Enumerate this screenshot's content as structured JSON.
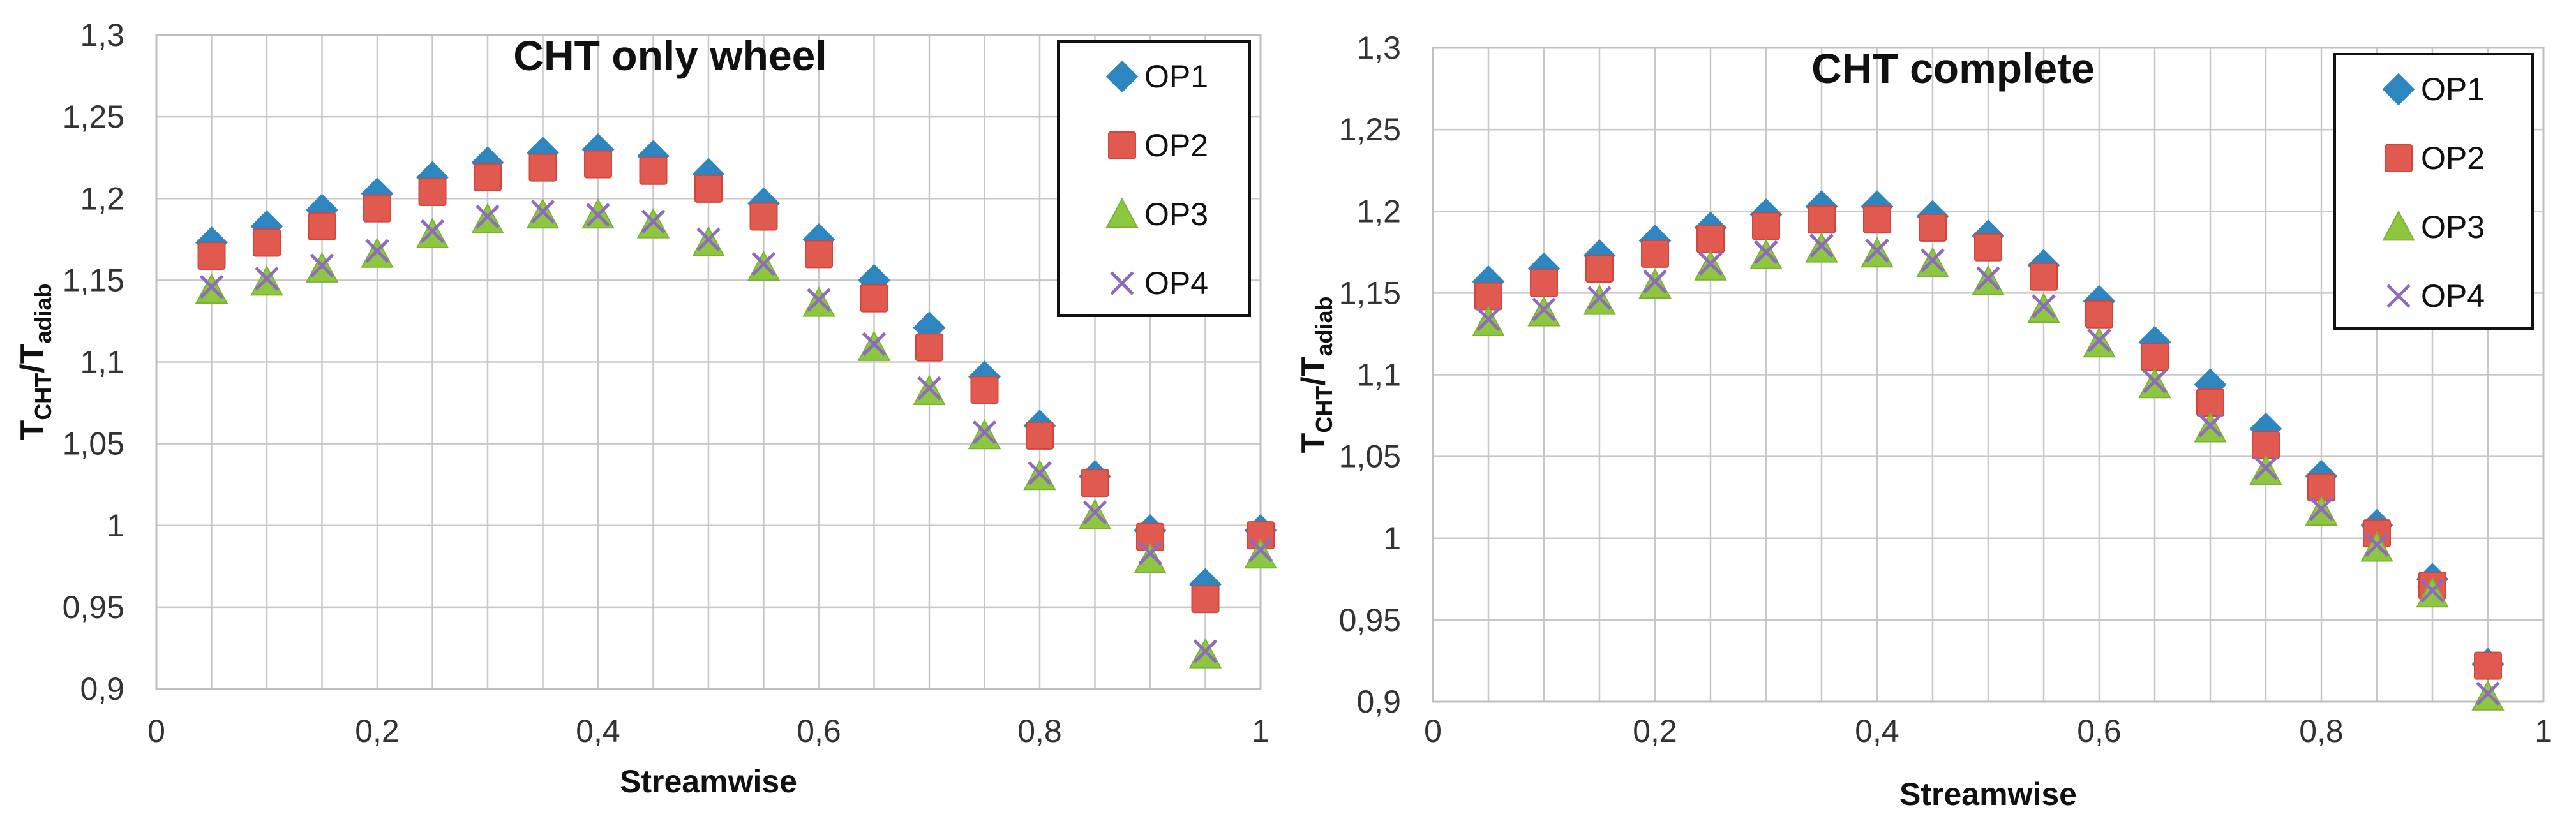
{
  "chart_data": [
    {
      "type": "scatter",
      "title": "CHT only wheel",
      "xlabel": "Streamwise",
      "ylabel_main": "T",
      "ylabel_sub1": "CHT",
      "ylabel_mid": "/T",
      "ylabel_sub2": "adiab",
      "xlim": [
        0,
        1
      ],
      "ylim": [
        0.9,
        1.3
      ],
      "x_ticks": [
        0,
        0.2,
        0.4,
        0.6,
        0.8,
        1
      ],
      "x_tick_labels": [
        "0",
        "0,2",
        "0,4",
        "0,6",
        "0,8",
        "1"
      ],
      "y_ticks": [
        0.9,
        0.95,
        1.0,
        1.05,
        1.1,
        1.15,
        1.2,
        1.25,
        1.3
      ],
      "y_tick_labels": [
        "0,9",
        "0,95",
        "1",
        "1,05",
        "1,1",
        "1,15",
        "1,2",
        "1,25",
        "1,3"
      ],
      "grid": true,
      "legend_position": "top-right",
      "x": [
        0.05,
        0.1,
        0.15,
        0.2,
        0.25,
        0.3,
        0.35,
        0.4,
        0.45,
        0.5,
        0.55,
        0.6,
        0.65,
        0.7,
        0.75,
        0.8,
        0.85,
        0.9,
        0.95,
        1.0
      ],
      "series": [
        {
          "name": "OP1",
          "marker": "diamond",
          "color": "#2e86c1",
          "values": [
            1.173,
            1.183,
            1.193,
            1.203,
            1.213,
            1.222,
            1.228,
            1.23,
            1.226,
            1.215,
            1.197,
            1.175,
            1.15,
            1.121,
            1.091,
            1.061,
            1.03,
            0.997,
            0.964,
            0.997
          ]
        },
        {
          "name": "OP2",
          "marker": "square",
          "color": "#e05a4f",
          "values": [
            1.165,
            1.173,
            1.183,
            1.194,
            1.204,
            1.213,
            1.219,
            1.221,
            1.217,
            1.206,
            1.189,
            1.166,
            1.139,
            1.109,
            1.083,
            1.055,
            1.026,
            0.993,
            0.955,
            0.994
          ]
        },
        {
          "name": "OP3",
          "marker": "triangle",
          "color": "#8dc63f",
          "values": [
            1.144,
            1.149,
            1.157,
            1.166,
            1.178,
            1.187,
            1.19,
            1.19,
            1.184,
            1.173,
            1.158,
            1.136,
            1.109,
            1.082,
            1.055,
            1.03,
            1.006,
            0.979,
            0.921,
            0.982
          ]
        },
        {
          "name": "OP4",
          "marker": "cross",
          "color": "#8e6bbf",
          "values": [
            1.146,
            1.151,
            1.159,
            1.168,
            1.18,
            1.189,
            1.192,
            1.19,
            1.186,
            1.175,
            1.16,
            1.138,
            1.111,
            1.084,
            1.057,
            1.032,
            1.008,
            0.983,
            0.923,
            0.985
          ]
        }
      ]
    },
    {
      "type": "scatter",
      "title": "CHT complete",
      "xlabel": "Streamwise",
      "ylabel_main": "T",
      "ylabel_sub1": "CHT",
      "ylabel_mid": "/T",
      "ylabel_sub2": "adiab",
      "xlim": [
        0,
        1
      ],
      "ylim": [
        0.9,
        1.3
      ],
      "x_ticks": [
        0,
        0.2,
        0.4,
        0.6,
        0.8,
        1
      ],
      "x_tick_labels": [
        "0",
        "0,2",
        "0,4",
        "0,6",
        "0,8",
        "1"
      ],
      "y_ticks": [
        0.9,
        0.95,
        1.0,
        1.05,
        1.1,
        1.15,
        1.2,
        1.25,
        1.3
      ],
      "y_tick_labels": [
        "0,9",
        "0,95",
        "1",
        "1,05",
        "1,1",
        "1,15",
        "1,2",
        "1,25",
        "1,3"
      ],
      "grid": true,
      "legend_position": "top-right",
      "x": [
        0.05,
        0.1,
        0.15,
        0.2,
        0.25,
        0.3,
        0.35,
        0.4,
        0.45,
        0.5,
        0.55,
        0.6,
        0.65,
        0.7,
        0.75,
        0.8,
        0.85,
        0.9,
        0.95
      ],
      "series": [
        {
          "name": "OP1",
          "marker": "diamond",
          "color": "#2e86c1",
          "values": [
            1.157,
            1.165,
            1.173,
            1.182,
            1.19,
            1.198,
            1.203,
            1.203,
            1.197,
            1.185,
            1.167,
            1.145,
            1.12,
            1.094,
            1.067,
            1.038,
            1.008,
            0.975,
            0.923
          ]
        },
        {
          "name": "OP2",
          "marker": "square",
          "color": "#e05a4f",
          "values": [
            1.148,
            1.156,
            1.165,
            1.174,
            1.183,
            1.191,
            1.195,
            1.195,
            1.19,
            1.178,
            1.16,
            1.137,
            1.111,
            1.083,
            1.057,
            1.031,
            1.003,
            0.971,
            0.922
          ]
        },
        {
          "name": "OP3",
          "marker": "triangle",
          "color": "#8dc63f",
          "values": [
            1.132,
            1.138,
            1.145,
            1.155,
            1.166,
            1.173,
            1.177,
            1.174,
            1.168,
            1.157,
            1.14,
            1.119,
            1.094,
            1.067,
            1.041,
            1.016,
            0.994,
            0.966,
            0.903
          ]
        },
        {
          "name": "OP4",
          "marker": "cross",
          "color": "#8e6bbf",
          "values": [
            1.134,
            1.14,
            1.147,
            1.157,
            1.168,
            1.175,
            1.179,
            1.176,
            1.17,
            1.159,
            1.142,
            1.121,
            1.096,
            1.069,
            1.043,
            1.018,
            0.996,
            0.968,
            0.905
          ]
        }
      ]
    }
  ]
}
